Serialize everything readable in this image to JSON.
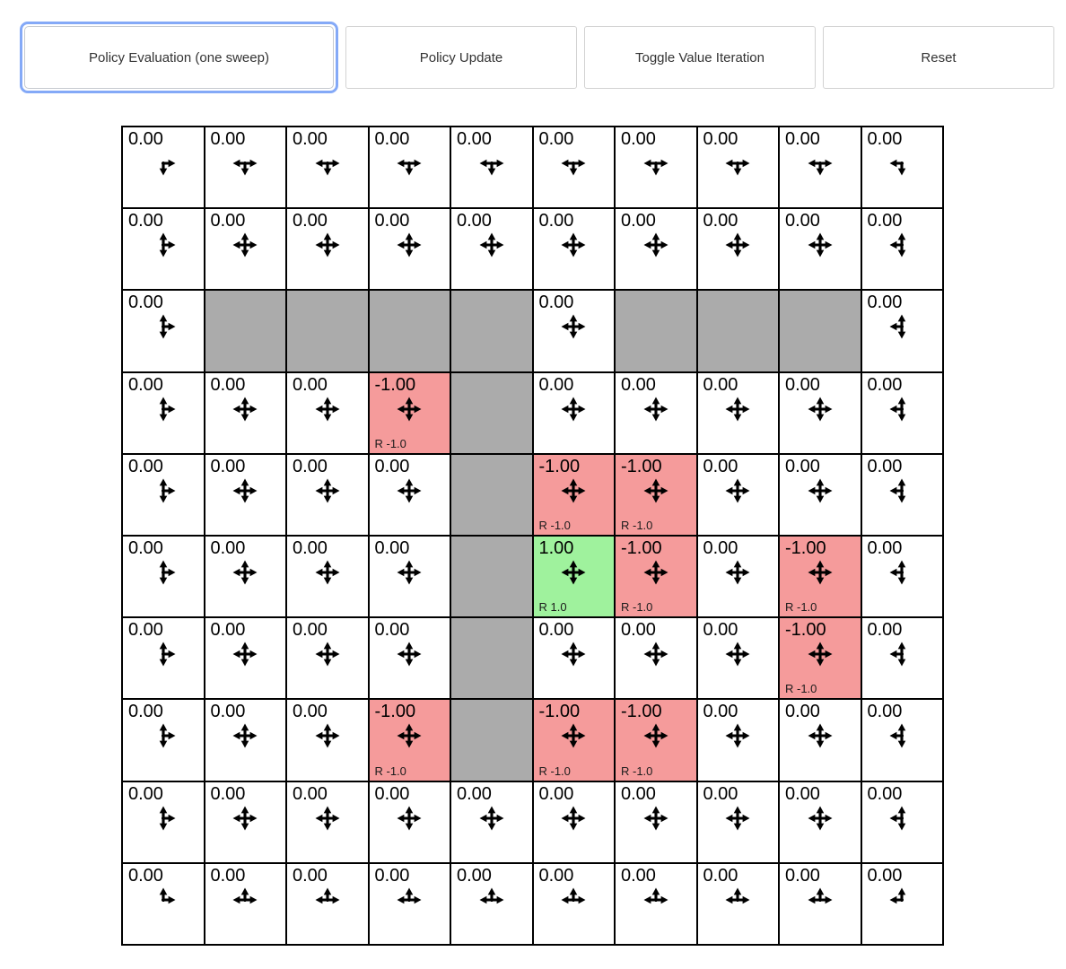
{
  "toolbar": {
    "buttons": [
      {
        "label": "Policy Evaluation (one sweep)",
        "focused": true
      },
      {
        "label": "Policy Update",
        "focused": false
      },
      {
        "label": "Toggle Value Iteration",
        "focused": false
      },
      {
        "label": "Reset",
        "focused": false
      }
    ]
  },
  "colors": {
    "positive_bg": "#9ff29d",
    "negative_bg": "#f59b9b",
    "wall_bg": "#ababab",
    "focus_ring": "#84a9f7",
    "cell_border": "#000000"
  },
  "grid": {
    "rows": 10,
    "cols": 10,
    "cells": [
      [
        {
          "value": "0.00",
          "type": "normal",
          "arrows": [
            "right",
            "down"
          ],
          "reward": null
        },
        {
          "value": "0.00",
          "type": "normal",
          "arrows": [
            "left",
            "right",
            "down"
          ],
          "reward": null
        },
        {
          "value": "0.00",
          "type": "normal",
          "arrows": [
            "left",
            "right",
            "down"
          ],
          "reward": null
        },
        {
          "value": "0.00",
          "type": "normal",
          "arrows": [
            "left",
            "right",
            "down"
          ],
          "reward": null
        },
        {
          "value": "0.00",
          "type": "normal",
          "arrows": [
            "left",
            "right",
            "down"
          ],
          "reward": null
        },
        {
          "value": "0.00",
          "type": "normal",
          "arrows": [
            "left",
            "right",
            "down"
          ],
          "reward": null
        },
        {
          "value": "0.00",
          "type": "normal",
          "arrows": [
            "left",
            "right",
            "down"
          ],
          "reward": null
        },
        {
          "value": "0.00",
          "type": "normal",
          "arrows": [
            "left",
            "right",
            "down"
          ],
          "reward": null
        },
        {
          "value": "0.00",
          "type": "normal",
          "arrows": [
            "left",
            "right",
            "down"
          ],
          "reward": null
        },
        {
          "value": "0.00",
          "type": "normal",
          "arrows": [
            "left",
            "down"
          ],
          "reward": null
        }
      ],
      [
        {
          "value": "0.00",
          "type": "normal",
          "arrows": [
            "up",
            "right",
            "down"
          ],
          "reward": null
        },
        {
          "value": "0.00",
          "type": "normal",
          "arrows": [
            "up",
            "down",
            "left",
            "right"
          ],
          "reward": null
        },
        {
          "value": "0.00",
          "type": "normal",
          "arrows": [
            "up",
            "down",
            "left",
            "right"
          ],
          "reward": null
        },
        {
          "value": "0.00",
          "type": "normal",
          "arrows": [
            "up",
            "down",
            "left",
            "right"
          ],
          "reward": null
        },
        {
          "value": "0.00",
          "type": "normal",
          "arrows": [
            "up",
            "down",
            "left",
            "right"
          ],
          "reward": null
        },
        {
          "value": "0.00",
          "type": "normal",
          "arrows": [
            "up",
            "down",
            "left",
            "right"
          ],
          "reward": null
        },
        {
          "value": "0.00",
          "type": "normal",
          "arrows": [
            "up",
            "down",
            "left",
            "right"
          ],
          "reward": null
        },
        {
          "value": "0.00",
          "type": "normal",
          "arrows": [
            "up",
            "down",
            "left",
            "right"
          ],
          "reward": null
        },
        {
          "value": "0.00",
          "type": "normal",
          "arrows": [
            "up",
            "down",
            "left",
            "right"
          ],
          "reward": null
        },
        {
          "value": "0.00",
          "type": "normal",
          "arrows": [
            "up",
            "left",
            "down"
          ],
          "reward": null
        }
      ],
      [
        {
          "value": "0.00",
          "type": "normal",
          "arrows": [
            "up",
            "right",
            "down"
          ],
          "reward": null
        },
        {
          "type": "wall"
        },
        {
          "type": "wall"
        },
        {
          "type": "wall"
        },
        {
          "type": "wall"
        },
        {
          "value": "0.00",
          "type": "normal",
          "arrows": [
            "up",
            "down",
            "left",
            "right"
          ],
          "reward": null
        },
        {
          "type": "wall"
        },
        {
          "type": "wall"
        },
        {
          "type": "wall"
        },
        {
          "value": "0.00",
          "type": "normal",
          "arrows": [
            "up",
            "left",
            "down"
          ],
          "reward": null
        }
      ],
      [
        {
          "value": "0.00",
          "type": "normal",
          "arrows": [
            "up",
            "right",
            "down"
          ],
          "reward": null
        },
        {
          "value": "0.00",
          "type": "normal",
          "arrows": [
            "up",
            "down",
            "left",
            "right"
          ],
          "reward": null
        },
        {
          "value": "0.00",
          "type": "normal",
          "arrows": [
            "up",
            "down",
            "left",
            "right"
          ],
          "reward": null
        },
        {
          "value": "-1.00",
          "type": "negative",
          "arrows": [
            "up",
            "down",
            "left",
            "right"
          ],
          "reward": "R -1.0"
        },
        {
          "type": "wall"
        },
        {
          "value": "0.00",
          "type": "normal",
          "arrows": [
            "up",
            "down",
            "left",
            "right"
          ],
          "reward": null
        },
        {
          "value": "0.00",
          "type": "normal",
          "arrows": [
            "up",
            "down",
            "left",
            "right"
          ],
          "reward": null
        },
        {
          "value": "0.00",
          "type": "normal",
          "arrows": [
            "up",
            "down",
            "left",
            "right"
          ],
          "reward": null
        },
        {
          "value": "0.00",
          "type": "normal",
          "arrows": [
            "up",
            "down",
            "left",
            "right"
          ],
          "reward": null
        },
        {
          "value": "0.00",
          "type": "normal",
          "arrows": [
            "up",
            "left",
            "down"
          ],
          "reward": null
        }
      ],
      [
        {
          "value": "0.00",
          "type": "normal",
          "arrows": [
            "up",
            "right",
            "down"
          ],
          "reward": null
        },
        {
          "value": "0.00",
          "type": "normal",
          "arrows": [
            "up",
            "down",
            "left",
            "right"
          ],
          "reward": null
        },
        {
          "value": "0.00",
          "type": "normal",
          "arrows": [
            "up",
            "down",
            "left",
            "right"
          ],
          "reward": null
        },
        {
          "value": "0.00",
          "type": "normal",
          "arrows": [
            "up",
            "down",
            "left",
            "right"
          ],
          "reward": null
        },
        {
          "type": "wall"
        },
        {
          "value": "-1.00",
          "type": "negative",
          "arrows": [
            "up",
            "down",
            "left",
            "right"
          ],
          "reward": "R -1.0"
        },
        {
          "value": "-1.00",
          "type": "negative",
          "arrows": [
            "up",
            "down",
            "left",
            "right"
          ],
          "reward": "R -1.0"
        },
        {
          "value": "0.00",
          "type": "normal",
          "arrows": [
            "up",
            "down",
            "left",
            "right"
          ],
          "reward": null
        },
        {
          "value": "0.00",
          "type": "normal",
          "arrows": [
            "up",
            "down",
            "left",
            "right"
          ],
          "reward": null
        },
        {
          "value": "0.00",
          "type": "normal",
          "arrows": [
            "up",
            "left",
            "down"
          ],
          "reward": null
        }
      ],
      [
        {
          "value": "0.00",
          "type": "normal",
          "arrows": [
            "up",
            "right",
            "down"
          ],
          "reward": null
        },
        {
          "value": "0.00",
          "type": "normal",
          "arrows": [
            "up",
            "down",
            "left",
            "right"
          ],
          "reward": null
        },
        {
          "value": "0.00",
          "type": "normal",
          "arrows": [
            "up",
            "down",
            "left",
            "right"
          ],
          "reward": null
        },
        {
          "value": "0.00",
          "type": "normal",
          "arrows": [
            "up",
            "down",
            "left",
            "right"
          ],
          "reward": null
        },
        {
          "type": "wall"
        },
        {
          "value": "1.00",
          "type": "positive",
          "arrows": [
            "up",
            "down",
            "left",
            "right"
          ],
          "reward": "R 1.0"
        },
        {
          "value": "-1.00",
          "type": "negative",
          "arrows": [
            "up",
            "down",
            "left",
            "right"
          ],
          "reward": "R -1.0"
        },
        {
          "value": "0.00",
          "type": "normal",
          "arrows": [
            "up",
            "down",
            "left",
            "right"
          ],
          "reward": null
        },
        {
          "value": "-1.00",
          "type": "negative",
          "arrows": [
            "up",
            "down",
            "left",
            "right"
          ],
          "reward": "R -1.0"
        },
        {
          "value": "0.00",
          "type": "normal",
          "arrows": [
            "up",
            "left",
            "down"
          ],
          "reward": null
        }
      ],
      [
        {
          "value": "0.00",
          "type": "normal",
          "arrows": [
            "up",
            "right",
            "down"
          ],
          "reward": null
        },
        {
          "value": "0.00",
          "type": "normal",
          "arrows": [
            "up",
            "down",
            "left",
            "right"
          ],
          "reward": null
        },
        {
          "value": "0.00",
          "type": "normal",
          "arrows": [
            "up",
            "down",
            "left",
            "right"
          ],
          "reward": null
        },
        {
          "value": "0.00",
          "type": "normal",
          "arrows": [
            "up",
            "down",
            "left",
            "right"
          ],
          "reward": null
        },
        {
          "type": "wall"
        },
        {
          "value": "0.00",
          "type": "normal",
          "arrows": [
            "up",
            "down",
            "left",
            "right"
          ],
          "reward": null
        },
        {
          "value": "0.00",
          "type": "normal",
          "arrows": [
            "up",
            "down",
            "left",
            "right"
          ],
          "reward": null
        },
        {
          "value": "0.00",
          "type": "normal",
          "arrows": [
            "up",
            "down",
            "left",
            "right"
          ],
          "reward": null
        },
        {
          "value": "-1.00",
          "type": "negative",
          "arrows": [
            "up",
            "down",
            "left",
            "right"
          ],
          "reward": "R -1.0"
        },
        {
          "value": "0.00",
          "type": "normal",
          "arrows": [
            "up",
            "left",
            "down"
          ],
          "reward": null
        }
      ],
      [
        {
          "value": "0.00",
          "type": "normal",
          "arrows": [
            "up",
            "right",
            "down"
          ],
          "reward": null
        },
        {
          "value": "0.00",
          "type": "normal",
          "arrows": [
            "up",
            "down",
            "left",
            "right"
          ],
          "reward": null
        },
        {
          "value": "0.00",
          "type": "normal",
          "arrows": [
            "up",
            "down",
            "left",
            "right"
          ],
          "reward": null
        },
        {
          "value": "-1.00",
          "type": "negative",
          "arrows": [
            "up",
            "down",
            "left",
            "right"
          ],
          "reward": "R -1.0"
        },
        {
          "type": "wall"
        },
        {
          "value": "-1.00",
          "type": "negative",
          "arrows": [
            "up",
            "down",
            "left",
            "right"
          ],
          "reward": "R -1.0"
        },
        {
          "value": "-1.00",
          "type": "negative",
          "arrows": [
            "up",
            "down",
            "left",
            "right"
          ],
          "reward": "R -1.0"
        },
        {
          "value": "0.00",
          "type": "normal",
          "arrows": [
            "up",
            "down",
            "left",
            "right"
          ],
          "reward": null
        },
        {
          "value": "0.00",
          "type": "normal",
          "arrows": [
            "up",
            "down",
            "left",
            "right"
          ],
          "reward": null
        },
        {
          "value": "0.00",
          "type": "normal",
          "arrows": [
            "up",
            "left",
            "down"
          ],
          "reward": null
        }
      ],
      [
        {
          "value": "0.00",
          "type": "normal",
          "arrows": [
            "up",
            "right",
            "down"
          ],
          "reward": null
        },
        {
          "value": "0.00",
          "type": "normal",
          "arrows": [
            "up",
            "down",
            "left",
            "right"
          ],
          "reward": null
        },
        {
          "value": "0.00",
          "type": "normal",
          "arrows": [
            "up",
            "down",
            "left",
            "right"
          ],
          "reward": null
        },
        {
          "value": "0.00",
          "type": "normal",
          "arrows": [
            "up",
            "down",
            "left",
            "right"
          ],
          "reward": null
        },
        {
          "value": "0.00",
          "type": "normal",
          "arrows": [
            "up",
            "down",
            "left",
            "right"
          ],
          "reward": null
        },
        {
          "value": "0.00",
          "type": "normal",
          "arrows": [
            "up",
            "down",
            "left",
            "right"
          ],
          "reward": null
        },
        {
          "value": "0.00",
          "type": "normal",
          "arrows": [
            "up",
            "down",
            "left",
            "right"
          ],
          "reward": null
        },
        {
          "value": "0.00",
          "type": "normal",
          "arrows": [
            "up",
            "down",
            "left",
            "right"
          ],
          "reward": null
        },
        {
          "value": "0.00",
          "type": "normal",
          "arrows": [
            "up",
            "down",
            "left",
            "right"
          ],
          "reward": null
        },
        {
          "value": "0.00",
          "type": "normal",
          "arrows": [
            "up",
            "left",
            "down"
          ],
          "reward": null
        }
      ],
      [
        {
          "value": "0.00",
          "type": "normal",
          "arrows": [
            "up",
            "right"
          ],
          "reward": null
        },
        {
          "value": "0.00",
          "type": "normal",
          "arrows": [
            "up",
            "left",
            "right"
          ],
          "reward": null
        },
        {
          "value": "0.00",
          "type": "normal",
          "arrows": [
            "up",
            "left",
            "right"
          ],
          "reward": null
        },
        {
          "value": "0.00",
          "type": "normal",
          "arrows": [
            "up",
            "left",
            "right"
          ],
          "reward": null
        },
        {
          "value": "0.00",
          "type": "normal",
          "arrows": [
            "up",
            "left",
            "right"
          ],
          "reward": null
        },
        {
          "value": "0.00",
          "type": "normal",
          "arrows": [
            "up",
            "left",
            "right"
          ],
          "reward": null
        },
        {
          "value": "0.00",
          "type": "normal",
          "arrows": [
            "up",
            "left",
            "right"
          ],
          "reward": null
        },
        {
          "value": "0.00",
          "type": "normal",
          "arrows": [
            "up",
            "left",
            "right"
          ],
          "reward": null
        },
        {
          "value": "0.00",
          "type": "normal",
          "arrows": [
            "up",
            "left",
            "right"
          ],
          "reward": null
        },
        {
          "value": "0.00",
          "type": "normal",
          "arrows": [
            "up",
            "left"
          ],
          "reward": null
        }
      ]
    ]
  }
}
